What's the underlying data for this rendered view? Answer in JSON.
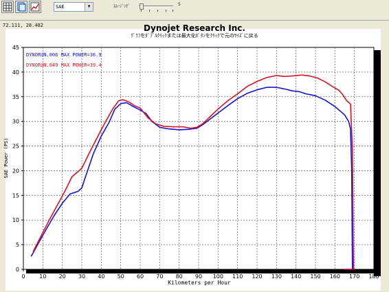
{
  "toolbar": {
    "buttons": [
      {
        "name": "grid-icon"
      },
      {
        "name": "copy-icon"
      },
      {
        "name": "data-table-icon"
      }
    ],
    "select_value": "SAE",
    "smoothing_label": "ｽﾑｰｼﾞﾝｸﾞ",
    "smoothing_value": "5",
    "smoothing_level": 0.0
  },
  "cursor_coordinates": "72.111, 28.482",
  "chart_data": {
    "type": "line",
    "title": "Dynojet  Research  Inc.",
    "subtitle": "ｸﾞﾗﾌをﾀﾞﾌﾞﾙｸﾘｯｸまたは最大化ﾎﾞﾀﾝをｸﾘｯｸで元のｻｲｽﾞに戻る",
    "xlabel": "Kilometers per Hour",
    "ylabel": "SAE Power (PS)",
    "xlim": [
      0,
      180
    ],
    "ylim": [
      0,
      45
    ],
    "xticks": [
      "0",
      "10",
      "20",
      "30",
      "40",
      "50",
      "60",
      "70",
      "80",
      "90",
      "100",
      "110",
      "120",
      "130",
      "140",
      "150",
      "160",
      "170",
      "180"
    ],
    "yticks": [
      "0",
      "5",
      "10",
      "15",
      "20",
      "25",
      "30",
      "35",
      "40",
      "45"
    ],
    "grid": true,
    "legend_position": "top-left",
    "series": [
      {
        "name": "DYNORUN.006",
        "legend_label": "DYNORUN.006  MAX POWER=36.9",
        "color": "#1010e0",
        "points": [
          [
            4,
            2.6
          ],
          [
            8,
            5.5
          ],
          [
            12,
            8.3
          ],
          [
            16,
            11.0
          ],
          [
            20,
            13.4
          ],
          [
            24,
            15.3
          ],
          [
            28,
            15.8
          ],
          [
            30,
            16.5
          ],
          [
            32,
            18.9
          ],
          [
            36,
            23.5
          ],
          [
            40,
            27.0
          ],
          [
            44,
            29.8
          ],
          [
            47,
            32.5
          ],
          [
            50,
            33.6
          ],
          [
            53,
            33.8
          ],
          [
            56,
            33.1
          ],
          [
            60,
            32.3
          ],
          [
            63,
            31.6
          ],
          [
            66,
            30.0
          ],
          [
            70,
            28.8
          ],
          [
            74,
            28.5
          ],
          [
            80,
            28.3
          ],
          [
            85,
            28.4
          ],
          [
            89,
            28.6
          ],
          [
            92,
            29.3
          ],
          [
            95,
            30.2
          ],
          [
            100,
            31.7
          ],
          [
            105,
            33.2
          ],
          [
            110,
            34.6
          ],
          [
            115,
            35.7
          ],
          [
            120,
            36.4
          ],
          [
            125,
            36.9
          ],
          [
            130,
            36.9
          ],
          [
            135,
            36.5
          ],
          [
            138,
            36.2
          ],
          [
            142,
            36.0
          ],
          [
            145,
            35.6
          ],
          [
            150,
            35.2
          ],
          [
            155,
            34.3
          ],
          [
            160,
            33.0
          ],
          [
            163,
            32.0
          ],
          [
            165,
            31.3
          ],
          [
            167,
            30.0
          ],
          [
            168,
            28.5
          ],
          [
            168.6,
            20.0
          ],
          [
            169,
            0
          ]
        ]
      },
      {
        "name": "DYNORUN.049",
        "legend_label": "DYNORUN.049  MAX POWER=39.4",
        "color": "#e01020",
        "points": [
          [
            5,
            3.6
          ],
          [
            9,
            6.7
          ],
          [
            13,
            9.8
          ],
          [
            17,
            12.7
          ],
          [
            21,
            15.6
          ],
          [
            25,
            18.8
          ],
          [
            28,
            19.8
          ],
          [
            30,
            20.5
          ],
          [
            34,
            23.7
          ],
          [
            38,
            26.8
          ],
          [
            42,
            29.8
          ],
          [
            46,
            32.6
          ],
          [
            49,
            34.2
          ],
          [
            51,
            34.4
          ],
          [
            54,
            34.0
          ],
          [
            57,
            33.2
          ],
          [
            60,
            32.7
          ],
          [
            64,
            30.7
          ],
          [
            68,
            29.5
          ],
          [
            72,
            29.0
          ],
          [
            77,
            28.9
          ],
          [
            82,
            28.9
          ],
          [
            86,
            28.6
          ],
          [
            89,
            28.8
          ],
          [
            92,
            29.5
          ],
          [
            96,
            31.0
          ],
          [
            100,
            32.5
          ],
          [
            105,
            34.2
          ],
          [
            110,
            35.6
          ],
          [
            115,
            37.1
          ],
          [
            120,
            38.1
          ],
          [
            125,
            38.9
          ],
          [
            130,
            39.3
          ],
          [
            134,
            39.1
          ],
          [
            138,
            39.2
          ],
          [
            143,
            39.4
          ],
          [
            147,
            39.2
          ],
          [
            151,
            38.8
          ],
          [
            155,
            38.0
          ],
          [
            159,
            37.0
          ],
          [
            162,
            36.3
          ],
          [
            164,
            35.4
          ],
          [
            166,
            34.2
          ],
          [
            168,
            33.5
          ],
          [
            169,
            24.0
          ],
          [
            169.5,
            0
          ]
        ]
      }
    ]
  }
}
